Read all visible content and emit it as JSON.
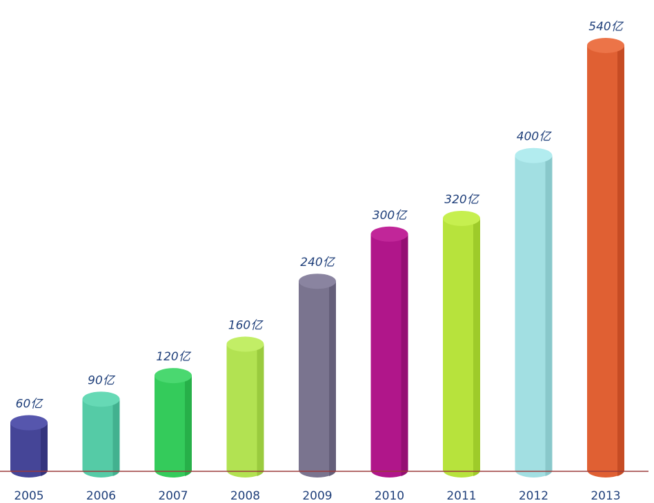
{
  "chart_data": {
    "type": "bar",
    "style": "3d-cylinder",
    "title": "",
    "xlabel": "",
    "ylabel": "",
    "categories": [
      "2005",
      "2006",
      "2007",
      "2008",
      "2009",
      "2010",
      "2011",
      "2012",
      "2013"
    ],
    "values": [
      60,
      90,
      120,
      160,
      240,
      300,
      320,
      400,
      540
    ],
    "value_labels": [
      "60亿",
      "90亿",
      "120亿",
      "160亿",
      "240亿",
      "300亿",
      "320亿",
      "400亿",
      "540亿"
    ],
    "ylim": [
      0,
      540
    ],
    "grid": false,
    "legend": "none",
    "axis_color": "#9b3a3a",
    "label_color": "#1f3f7a",
    "colors": [
      {
        "body": "#454597",
        "side": "#34347e",
        "top": "#5656ad"
      },
      {
        "body": "#55cba6",
        "side": "#42b18f",
        "top": "#66d9b5"
      },
      {
        "body": "#34cb5b",
        "side": "#27b049",
        "top": "#4ad870"
      },
      {
        "body": "#b2e252",
        "side": "#9acb3e",
        "top": "#c2ee66"
      },
      {
        "body": "#7a748f",
        "side": "#655f7a",
        "top": "#8a84a0"
      },
      {
        "body": "#b0168a",
        "side": "#940f73",
        "top": "#c12699"
      },
      {
        "body": "#b7e33c",
        "side": "#9ecb2a",
        "top": "#c6ef4f"
      },
      {
        "body": "#a2dfe2",
        "side": "#89c8cb",
        "top": "#b2ecef"
      },
      {
        "body": "#e06033",
        "side": "#c64c24",
        "top": "#ec7448"
      }
    ]
  }
}
